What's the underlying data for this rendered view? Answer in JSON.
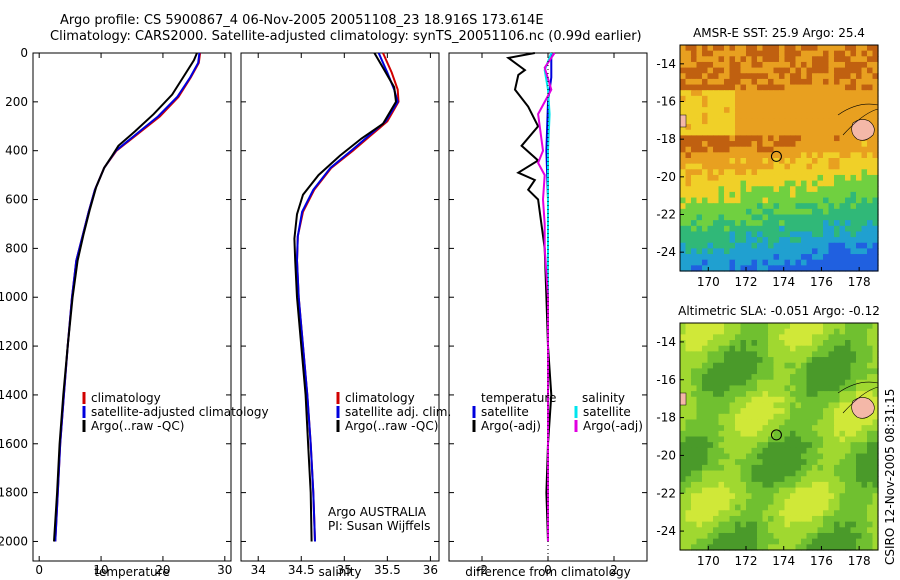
{
  "header": {
    "line1": "Argo profile: CS 5900867_4 06-Nov-2005 20051108_23 18.916S 173.614E",
    "line2": "Climatology: CARS2000. Satellite-adjusted climatology: synTS_20051106.nc (0.99d earlier)"
  },
  "colors": {
    "climatology": "#d00000",
    "satellite": "#0000dd",
    "argo": "#000000",
    "salinity_satellite": "#00e5ee",
    "salinity_argo": "#e000e0"
  },
  "chart_data": [
    {
      "type": "line",
      "xlabel": "temperature",
      "ylabel": "",
      "xlim": [
        -1,
        31
      ],
      "ylim": [
        2080,
        0
      ],
      "xticks": [
        0,
        10,
        20,
        30
      ],
      "yticks": [
        0,
        200,
        400,
        600,
        800,
        1000,
        1200,
        1400,
        1600,
        1800,
        2000
      ],
      "legend": {
        "placement": "bottom-right",
        "entries": [
          "climatology",
          "satellite-adjusted climatology",
          "Argo(..raw -QC)"
        ]
      },
      "series": [
        {
          "name": "climatology",
          "color_key": "climatology",
          "points": [
            [
              26,
              0
            ],
            [
              25.8,
              40
            ],
            [
              24.5,
              100
            ],
            [
              22.5,
              180
            ],
            [
              19.5,
              260
            ],
            [
              16,
              330
            ],
            [
              12.5,
              400
            ],
            [
              10.5,
              470
            ],
            [
              9,
              560
            ],
            [
              8,
              650
            ],
            [
              7,
              750
            ],
            [
              6,
              850
            ],
            [
              5.3,
              1000
            ],
            [
              4.6,
              1200
            ],
            [
              4,
              1400
            ],
            [
              3.4,
              1600
            ],
            [
              3,
              1800
            ],
            [
              2.6,
              2000
            ]
          ]
        },
        {
          "name": "satellite-adjusted climatology",
          "color_key": "satellite",
          "points": [
            [
              25.9,
              0
            ],
            [
              25.7,
              40
            ],
            [
              24.4,
              100
            ],
            [
              22.3,
              180
            ],
            [
              19.2,
              260
            ],
            [
              15.8,
              330
            ],
            [
              12.4,
              400
            ],
            [
              10.5,
              470
            ],
            [
              9,
              560
            ],
            [
              8,
              650
            ],
            [
              7,
              750
            ],
            [
              6,
              850
            ],
            [
              5.3,
              1000
            ],
            [
              4.6,
              1200
            ],
            [
              4,
              1400
            ],
            [
              3.4,
              1600
            ],
            [
              3,
              1800
            ],
            [
              2.6,
              2000
            ]
          ]
        },
        {
          "name": "Argo(..raw -QC)",
          "color_key": "argo",
          "points": [
            [
              25.5,
              0
            ],
            [
              25,
              30
            ],
            [
              23.5,
              90
            ],
            [
              21.5,
              170
            ],
            [
              18.5,
              250
            ],
            [
              15.5,
              320
            ],
            [
              12.8,
              380
            ],
            [
              11.8,
              420
            ],
            [
              10.5,
              470
            ],
            [
              9.2,
              550
            ],
            [
              8.2,
              640
            ],
            [
              7.2,
              740
            ],
            [
              6.2,
              850
            ],
            [
              5.4,
              1000
            ],
            [
              4.6,
              1200
            ],
            [
              3.9,
              1400
            ],
            [
              3.3,
              1600
            ],
            [
              2.9,
              1800
            ],
            [
              2.4,
              2000
            ]
          ]
        }
      ]
    },
    {
      "type": "line",
      "xlabel": "salinity",
      "xlim": [
        33.8,
        36.1
      ],
      "ylim": [
        2080,
        0
      ],
      "xticks": [
        34,
        34.5,
        35,
        35.5,
        36
      ],
      "legend": {
        "placement": "bottom-right",
        "entries": [
          "climatology",
          "satellite adj. clim.",
          "Argo(..raw -QC)"
        ]
      },
      "annotation_lines": [
        "Argo AUSTRALIA",
        "PI: Susan Wijffels"
      ],
      "series": [
        {
          "name": "climatology",
          "color_key": "climatology",
          "points": [
            [
              35.45,
              0
            ],
            [
              35.55,
              80
            ],
            [
              35.62,
              150
            ],
            [
              35.63,
              200
            ],
            [
              35.5,
              280
            ],
            [
              35.3,
              340
            ],
            [
              35.1,
              400
            ],
            [
              34.85,
              470
            ],
            [
              34.65,
              560
            ],
            [
              34.52,
              650
            ],
            [
              34.46,
              750
            ],
            [
              34.45,
              850
            ],
            [
              34.47,
              1000
            ],
            [
              34.52,
              1200
            ],
            [
              34.57,
              1400
            ],
            [
              34.61,
              1600
            ],
            [
              34.64,
              1800
            ],
            [
              34.66,
              2000
            ]
          ]
        },
        {
          "name": "satellite adj. clim.",
          "color_key": "satellite",
          "points": [
            [
              35.4,
              0
            ],
            [
              35.5,
              80
            ],
            [
              35.58,
              150
            ],
            [
              35.62,
              200
            ],
            [
              35.48,
              280
            ],
            [
              35.28,
              340
            ],
            [
              35.08,
              400
            ],
            [
              34.84,
              470
            ],
            [
              34.64,
              560
            ],
            [
              34.51,
              650
            ],
            [
              34.46,
              750
            ],
            [
              34.45,
              850
            ],
            [
              34.47,
              1000
            ],
            [
              34.52,
              1200
            ],
            [
              34.57,
              1400
            ],
            [
              34.61,
              1600
            ],
            [
              34.64,
              1800
            ],
            [
              34.66,
              2000
            ]
          ]
        },
        {
          "name": "Argo(..raw -QC)",
          "color_key": "argo",
          "points": [
            [
              35.35,
              0
            ],
            [
              35.45,
              60
            ],
            [
              35.58,
              140
            ],
            [
              35.6,
              200
            ],
            [
              35.45,
              290
            ],
            [
              35.2,
              350
            ],
            [
              34.95,
              420
            ],
            [
              34.7,
              500
            ],
            [
              34.52,
              580
            ],
            [
              34.45,
              660
            ],
            [
              34.42,
              760
            ],
            [
              34.43,
              850
            ],
            [
              34.45,
              1000
            ],
            [
              34.5,
              1200
            ],
            [
              34.55,
              1400
            ],
            [
              34.58,
              1600
            ],
            [
              34.61,
              1800
            ],
            [
              34.62,
              2000
            ]
          ]
        }
      ]
    },
    {
      "type": "line",
      "xlabel": "difference from climatology",
      "xlim": [
        -3,
        3
      ],
      "ylim": [
        2080,
        0
      ],
      "xticks": [
        -2,
        0,
        2
      ],
      "legend": {
        "placement": "bottom",
        "columns": [
          {
            "heading": "temperature",
            "entries": [
              "satellite",
              "Argo(-adj)"
            ]
          },
          {
            "heading": "salinity",
            "entries": [
              "satellite",
              "Argo(-adj)"
            ]
          }
        ]
      },
      "series": [
        {
          "name": "satellite",
          "group": "temperature",
          "color_key": "satellite",
          "points": [
            [
              0.1,
              0
            ],
            [
              0.1,
              100
            ],
            [
              0,
              200
            ],
            [
              -0.05,
              400
            ],
            [
              0,
              600
            ],
            [
              0,
              800
            ],
            [
              0,
              1000
            ],
            [
              0,
              1500
            ],
            [
              0,
              2000
            ]
          ]
        },
        {
          "name": "Argo(-adj)",
          "group": "temperature",
          "color_key": "argo",
          "points": [
            [
              -0.4,
              0
            ],
            [
              -1.2,
              20
            ],
            [
              -0.7,
              70
            ],
            [
              -0.9,
              90
            ],
            [
              -1,
              150
            ],
            [
              -0.6,
              220
            ],
            [
              -0.3,
              300
            ],
            [
              -0.8,
              380
            ],
            [
              -0.3,
              440
            ],
            [
              -0.9,
              490
            ],
            [
              -0.4,
              520
            ],
            [
              -0.6,
              560
            ],
            [
              -0.3,
              600
            ],
            [
              -0.2,
              700
            ],
            [
              -0.1,
              800
            ],
            [
              -0.05,
              1000
            ],
            [
              0,
              1200
            ],
            [
              0.1,
              1400
            ],
            [
              0,
              1600
            ],
            [
              -0.05,
              1800
            ],
            [
              0,
              2000
            ]
          ]
        },
        {
          "name": "satellite",
          "group": "salinity",
          "color_key": "salinity_satellite",
          "points": [
            [
              0.1,
              0
            ],
            [
              -0.1,
              70
            ],
            [
              0,
              150
            ],
            [
              0.05,
              250
            ],
            [
              0,
              400
            ],
            [
              0,
              600
            ],
            [
              0,
              800
            ],
            [
              0,
              1000
            ],
            [
              0,
              1500
            ],
            [
              0,
              2000
            ]
          ]
        },
        {
          "name": "Argo(-adj)",
          "group": "salinity",
          "color_key": "salinity_argo",
          "points": [
            [
              0.2,
              0
            ],
            [
              -0.1,
              60
            ],
            [
              0.1,
              150
            ],
            [
              -0.3,
              250
            ],
            [
              -0.15,
              400
            ],
            [
              -0.3,
              450
            ],
            [
              -0.1,
              500
            ],
            [
              -0.15,
              600
            ],
            [
              -0.1,
              700
            ],
            [
              -0.1,
              800
            ],
            [
              0,
              1000
            ],
            [
              0,
              1200
            ],
            [
              0,
              2000
            ]
          ]
        }
      ]
    },
    {
      "type": "heatmap",
      "title": "AMSR-E SST: 25.9 Argo: 25.4",
      "xlim": [
        168.5,
        179
      ],
      "ylim": [
        -25,
        -13
      ],
      "xticks": [
        170,
        172,
        174,
        176,
        178
      ],
      "yticks": [
        -14,
        -16,
        -18,
        -20,
        -22,
        -24
      ],
      "marker": {
        "x": 173.614,
        "y": -18.916
      },
      "colors": [
        "#c06010",
        "#e8a020",
        "#f0d028",
        "#70d040",
        "#30b878",
        "#20a0d0",
        "#2060e0"
      ]
    },
    {
      "type": "heatmap",
      "title": "Altimetric SLA: -0.051 Argo: -0.12",
      "xlim": [
        168.5,
        179
      ],
      "ylim": [
        -25,
        -13
      ],
      "xticks": [
        170,
        172,
        174,
        176,
        178
      ],
      "yticks": [
        -14,
        -16,
        -18,
        -20,
        -22,
        -24
      ],
      "marker": {
        "x": 173.614,
        "y": -18.916
      },
      "colors": [
        "#4a9a2a",
        "#70c030",
        "#a0d830",
        "#d0e838"
      ]
    }
  ],
  "side_label": "CSIRO 12-Nov-2005 08:31:15"
}
